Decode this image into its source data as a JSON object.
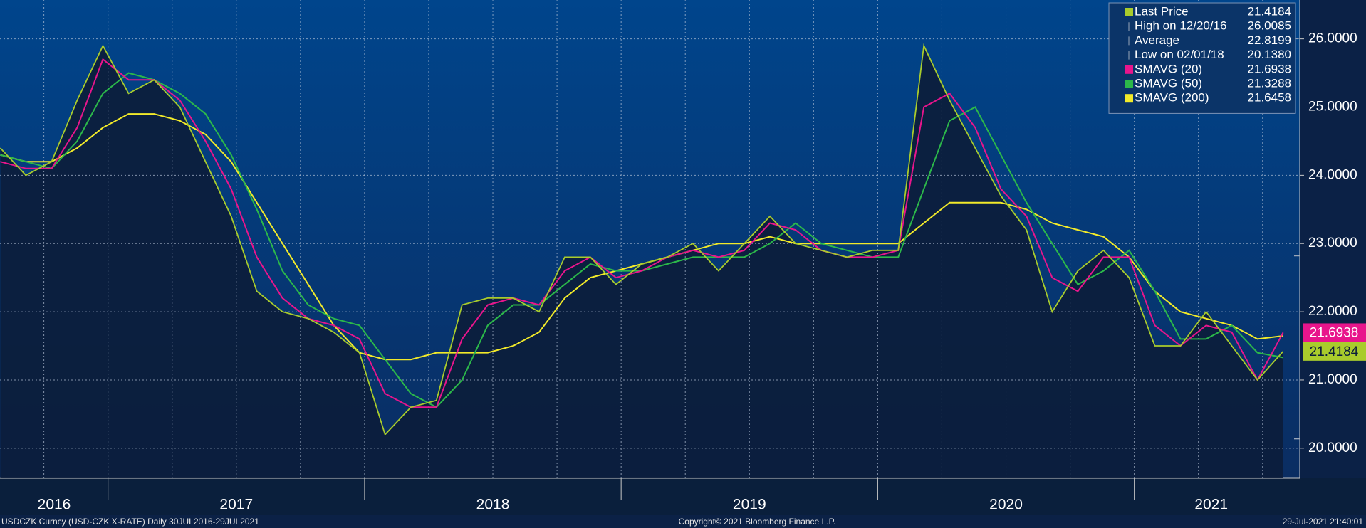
{
  "chart_data": {
    "type": "line",
    "legend_position": "top-right",
    "grid": true,
    "x": [
      2016.58,
      2016.68,
      2016.78,
      2016.88,
      2016.98,
      2017.08,
      2017.18,
      2017.28,
      2017.38,
      2017.48,
      2017.58,
      2017.68,
      2017.78,
      2017.88,
      2017.98,
      2018.08,
      2018.18,
      2018.28,
      2018.38,
      2018.48,
      2018.58,
      2018.68,
      2018.78,
      2018.88,
      2018.98,
      2019.08,
      2019.18,
      2019.28,
      2019.38,
      2019.48,
      2019.58,
      2019.68,
      2019.78,
      2019.88,
      2019.98,
      2020.08,
      2020.18,
      2020.28,
      2020.38,
      2020.48,
      2020.58,
      2020.68,
      2020.78,
      2020.88,
      2020.98,
      2021.08,
      2021.18,
      2021.28,
      2021.38,
      2021.48,
      2021.58
    ],
    "xlim": [
      2016.579,
      2021.645
    ],
    "xticks": [
      {
        "value": 2016.79,
        "label": "2016"
      },
      {
        "value": 2017.5,
        "label": "2017"
      },
      {
        "value": 2018.5,
        "label": "2018"
      },
      {
        "value": 2019.5,
        "label": "2019"
      },
      {
        "value": 2020.5,
        "label": "2020"
      },
      {
        "value": 2021.3,
        "label": "2021"
      }
    ],
    "year_separators": [
      2017,
      2018,
      2019,
      2020,
      2021
    ],
    "xgrid": [
      2016.75,
      2017,
      2017.25,
      2017.5,
      2017.75,
      2018,
      2018.25,
      2018.5,
      2018.75,
      2019,
      2019.25,
      2019.5,
      2019.75,
      2020,
      2020.25,
      2020.5,
      2020.75,
      2021,
      2021.25,
      2021.5
    ],
    "ylim": [
      19.56,
      26.57
    ],
    "yticks": [
      {
        "value": 20,
        "label": "20.0000"
      },
      {
        "value": 21,
        "label": "21.0000"
      },
      {
        "value": 22,
        "label": "22.0000"
      },
      {
        "value": 23,
        "label": "23.0000"
      },
      {
        "value": 24,
        "label": "24.0000"
      },
      {
        "value": 25,
        "label": "25.0000"
      },
      {
        "value": 26,
        "label": "26.0000"
      }
    ],
    "series": [
      {
        "name": "Last Price",
        "color": "#a9cc2c",
        "last_label": "21.4184",
        "tag": true,
        "values": [
          24.4,
          24.0,
          24.2,
          25.1,
          25.9,
          25.2,
          25.4,
          25.0,
          24.2,
          23.4,
          22.3,
          22.0,
          21.9,
          21.7,
          21.4,
          20.2,
          20.6,
          20.7,
          22.1,
          22.2,
          22.2,
          22.0,
          22.8,
          22.8,
          22.4,
          22.7,
          22.8,
          23.0,
          22.6,
          23.0,
          23.4,
          23.0,
          22.9,
          22.8,
          22.9,
          22.9,
          25.9,
          25.1,
          24.4,
          23.7,
          23.2,
          22.0,
          22.6,
          22.9,
          22.5,
          21.5,
          21.5,
          22.0,
          21.5,
          21.0,
          21.4184
        ]
      },
      {
        "name": "SMAVG (20)",
        "color": "#e8158c",
        "last_label": "21.6938",
        "tag": true,
        "values": [
          24.2,
          24.1,
          24.1,
          24.7,
          25.7,
          25.4,
          25.4,
          25.1,
          24.5,
          23.8,
          22.8,
          22.2,
          21.9,
          21.8,
          21.6,
          20.8,
          20.6,
          20.6,
          21.6,
          22.1,
          22.2,
          22.1,
          22.6,
          22.8,
          22.5,
          22.6,
          22.8,
          22.9,
          22.8,
          22.9,
          23.3,
          23.2,
          22.9,
          22.8,
          22.8,
          22.9,
          25.0,
          25.2,
          24.7,
          23.8,
          23.4,
          22.5,
          22.3,
          22.8,
          22.8,
          21.8,
          21.5,
          21.8,
          21.7,
          21.0,
          21.6938
        ]
      },
      {
        "name": "SMAVG (50)",
        "color": "#2cb84a",
        "last_label": "21.3288",
        "tag": false,
        "values": [
          24.3,
          24.2,
          24.1,
          24.5,
          25.2,
          25.5,
          25.4,
          25.2,
          24.9,
          24.3,
          23.5,
          22.6,
          22.1,
          21.9,
          21.8,
          21.3,
          20.8,
          20.6,
          21.0,
          21.8,
          22.1,
          22.1,
          22.4,
          22.7,
          22.6,
          22.6,
          22.7,
          22.8,
          22.8,
          22.8,
          23.0,
          23.3,
          23.0,
          22.9,
          22.8,
          22.8,
          23.8,
          24.8,
          25.0,
          24.3,
          23.6,
          23.0,
          22.4,
          22.6,
          22.9,
          22.3,
          21.6,
          21.6,
          21.8,
          21.4,
          21.3288
        ]
      },
      {
        "name": "SMAVG (200)",
        "color": "#f2ea2a",
        "last_label": "21.6458",
        "tag": false,
        "values": [
          24.3,
          24.2,
          24.2,
          24.4,
          24.7,
          24.9,
          24.9,
          24.8,
          24.6,
          24.2,
          23.6,
          23.0,
          22.4,
          21.8,
          21.4,
          21.3,
          21.3,
          21.4,
          21.4,
          21.4,
          21.5,
          21.7,
          22.2,
          22.5,
          22.6,
          22.7,
          22.8,
          22.9,
          23.0,
          23.0,
          23.1,
          23.0,
          23.0,
          23.0,
          23.0,
          23.0,
          23.3,
          23.6,
          23.6,
          23.6,
          23.5,
          23.3,
          23.2,
          23.1,
          22.8,
          22.3,
          22.0,
          21.9,
          21.8,
          21.6,
          21.6458
        ]
      }
    ],
    "stats": [
      {
        "name": "High on 12/20/16",
        "value": 26.0085,
        "value_label": "26.0085"
      },
      {
        "name": "Average",
        "value": 22.8199,
        "value_label": "22.8199"
      },
      {
        "name": "Low on 02/01/18",
        "value": 20.138,
        "value_label": "20.1380"
      }
    ],
    "footer_left": "USDCZK Curncy (USD-CZK X-RATE)  Daily 30JUL2016-29JUL2021",
    "footer_center": "Copyright© 2021 Bloomberg Finance L.P.",
    "footer_right": "29-Jul-2021 21:40:01"
  }
}
